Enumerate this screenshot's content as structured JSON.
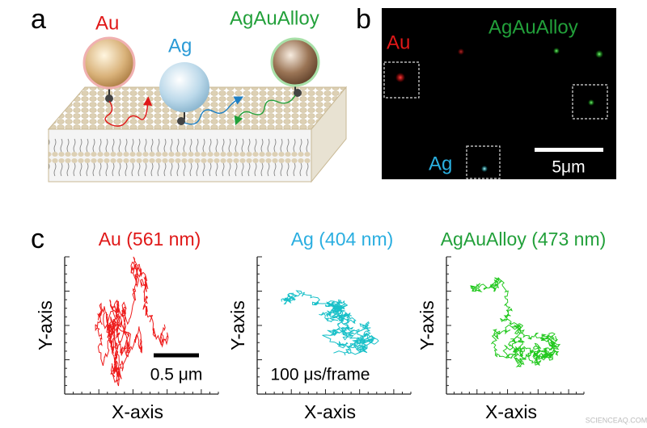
{
  "panels": [
    {
      "label": "a",
      "particles": [
        "Au",
        "Ag",
        "AgAuAlloy"
      ]
    },
    {
      "label": "b",
      "labels": [
        "Au",
        "AgAuAlloy",
        "Ag"
      ],
      "scale_bar": "5μm"
    },
    {
      "label": "c",
      "plots": [
        {
          "title": "Au (561 nm)",
          "y_label": "Y-axis",
          "x_label": "X-axis",
          "note": "0.5 μm"
        },
        {
          "title": "Ag (404 nm)",
          "y_label": "Y-axis",
          "x_label": "X-axis",
          "note": "100 μs/frame"
        },
        {
          "title": "AgAuAlloy (473 nm)",
          "y_label": "Y-axis",
          "x_label": "X-axis"
        }
      ]
    }
  ],
  "watermark": "SCIENCEAQ.COM"
}
